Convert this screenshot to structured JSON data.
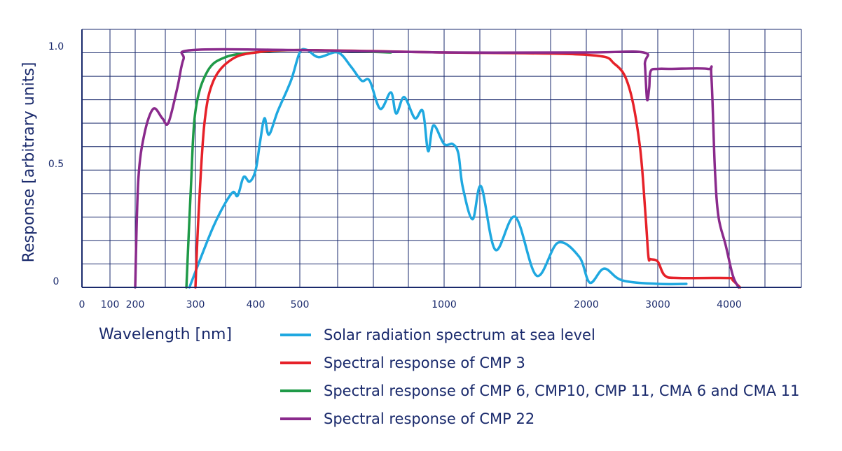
{
  "chart_data": {
    "type": "line",
    "ylabel": "Response [arbitrary units]",
    "xlabel": "Wavelength [nm]",
    "ylim": [
      0,
      1.1
    ],
    "y_ticks": [
      {
        "value": 0,
        "label": "0"
      },
      {
        "value": 0.5,
        "label": "0.5"
      },
      {
        "value": 1.0,
        "label": "1.0"
      }
    ],
    "x_ticks": [
      {
        "value": 0,
        "label": "0"
      },
      {
        "value": 100,
        "label": "100"
      },
      {
        "value": 200,
        "label": "200"
      },
      {
        "value": 300,
        "label": "300"
      },
      {
        "value": 400,
        "label": "400"
      },
      {
        "value": 500,
        "label": "500"
      },
      {
        "value": 1000,
        "label": "1000"
      },
      {
        "value": 2000,
        "label": "2000"
      },
      {
        "value": 3000,
        "label": "3000"
      },
      {
        "value": 4000,
        "label": "4000"
      }
    ],
    "grid": true,
    "legend_position": "bottom",
    "series": [
      {
        "name": "Solar radiation spectrum at sea level",
        "color": "#1fa8e0",
        "points": [
          [
            290,
            0
          ],
          [
            330,
            0.26
          ],
          [
            360,
            0.4
          ],
          [
            370,
            0.39
          ],
          [
            380,
            0.47
          ],
          [
            390,
            0.45
          ],
          [
            400,
            0.5
          ],
          [
            410,
            0.62
          ],
          [
            420,
            0.72
          ],
          [
            430,
            0.65
          ],
          [
            450,
            0.75
          ],
          [
            480,
            0.88
          ],
          [
            500,
            1.0
          ],
          [
            520,
            1.01
          ],
          [
            550,
            0.98
          ],
          [
            600,
            1.0
          ],
          [
            650,
            0.94
          ],
          [
            690,
            0.88
          ],
          [
            720,
            0.88
          ],
          [
            760,
            0.76
          ],
          [
            800,
            0.83
          ],
          [
            820,
            0.74
          ],
          [
            850,
            0.81
          ],
          [
            890,
            0.72
          ],
          [
            920,
            0.75
          ],
          [
            940,
            0.58
          ],
          [
            960,
            0.69
          ],
          [
            1000,
            0.61
          ],
          [
            1060,
            0.61
          ],
          [
            1100,
            0.57
          ],
          [
            1130,
            0.43
          ],
          [
            1200,
            0.29
          ],
          [
            1260,
            0.43
          ],
          [
            1360,
            0.16
          ],
          [
            1500,
            0.3
          ],
          [
            1650,
            0.05
          ],
          [
            1800,
            0.19
          ],
          [
            1950,
            0.13
          ],
          [
            2050,
            0.02
          ],
          [
            2250,
            0.08
          ],
          [
            2500,
            0.03
          ],
          [
            3000,
            0.015
          ],
          [
            3400,
            0.015
          ]
        ]
      },
      {
        "name": "Spectral response of CMP 3",
        "color": "#e62129",
        "points": [
          [
            300,
            0
          ],
          [
            305,
            0.3
          ],
          [
            315,
            0.7
          ],
          [
            330,
            0.88
          ],
          [
            360,
            0.97
          ],
          [
            400,
            1.0
          ],
          [
            500,
            1.01
          ],
          [
            1000,
            1.0
          ],
          [
            2000,
            0.99
          ],
          [
            2400,
            0.95
          ],
          [
            2600,
            0.85
          ],
          [
            2750,
            0.6
          ],
          [
            2830,
            0.3
          ],
          [
            2870,
            0.13
          ],
          [
            2900,
            0.12
          ],
          [
            3000,
            0.11
          ],
          [
            3100,
            0.05
          ],
          [
            3300,
            0.04
          ],
          [
            4000,
            0.04
          ],
          [
            4050,
            0.03
          ],
          [
            4150,
            0
          ]
        ]
      },
      {
        "name": "Spectral response of CMP 6, CMP10, CMP 11, CMA 6 and CMA 11",
        "color": "#1f9a48",
        "points": [
          [
            285,
            0
          ],
          [
            292,
            0.4
          ],
          [
            300,
            0.75
          ],
          [
            320,
            0.92
          ],
          [
            350,
            0.98
          ],
          [
            400,
            1.0
          ],
          [
            500,
            1.01
          ],
          [
            800,
            1.0
          ]
        ]
      },
      {
        "name": "Spectral response of CMP 22",
        "color": "#8a2a8c",
        "points": [
          [
            200,
            0
          ],
          [
            205,
            0.45
          ],
          [
            215,
            0.65
          ],
          [
            230,
            0.76
          ],
          [
            245,
            0.72
          ],
          [
            255,
            0.7
          ],
          [
            270,
            0.85
          ],
          [
            280,
            0.97
          ],
          [
            295,
            1.01
          ],
          [
            500,
            1.01
          ],
          [
            1000,
            1.0
          ],
          [
            2000,
            1.0
          ],
          [
            2800,
            1.0
          ],
          [
            2820,
            0.95
          ],
          [
            2850,
            0.8
          ],
          [
            2880,
            0.85
          ],
          [
            2900,
            0.92
          ],
          [
            3000,
            0.93
          ],
          [
            3200,
            0.93
          ],
          [
            3700,
            0.93
          ],
          [
            3750,
            0.9
          ],
          [
            3800,
            0.5
          ],
          [
            3850,
            0.3
          ],
          [
            3950,
            0.18
          ],
          [
            4050,
            0.05
          ],
          [
            4130,
            0
          ]
        ]
      }
    ]
  }
}
